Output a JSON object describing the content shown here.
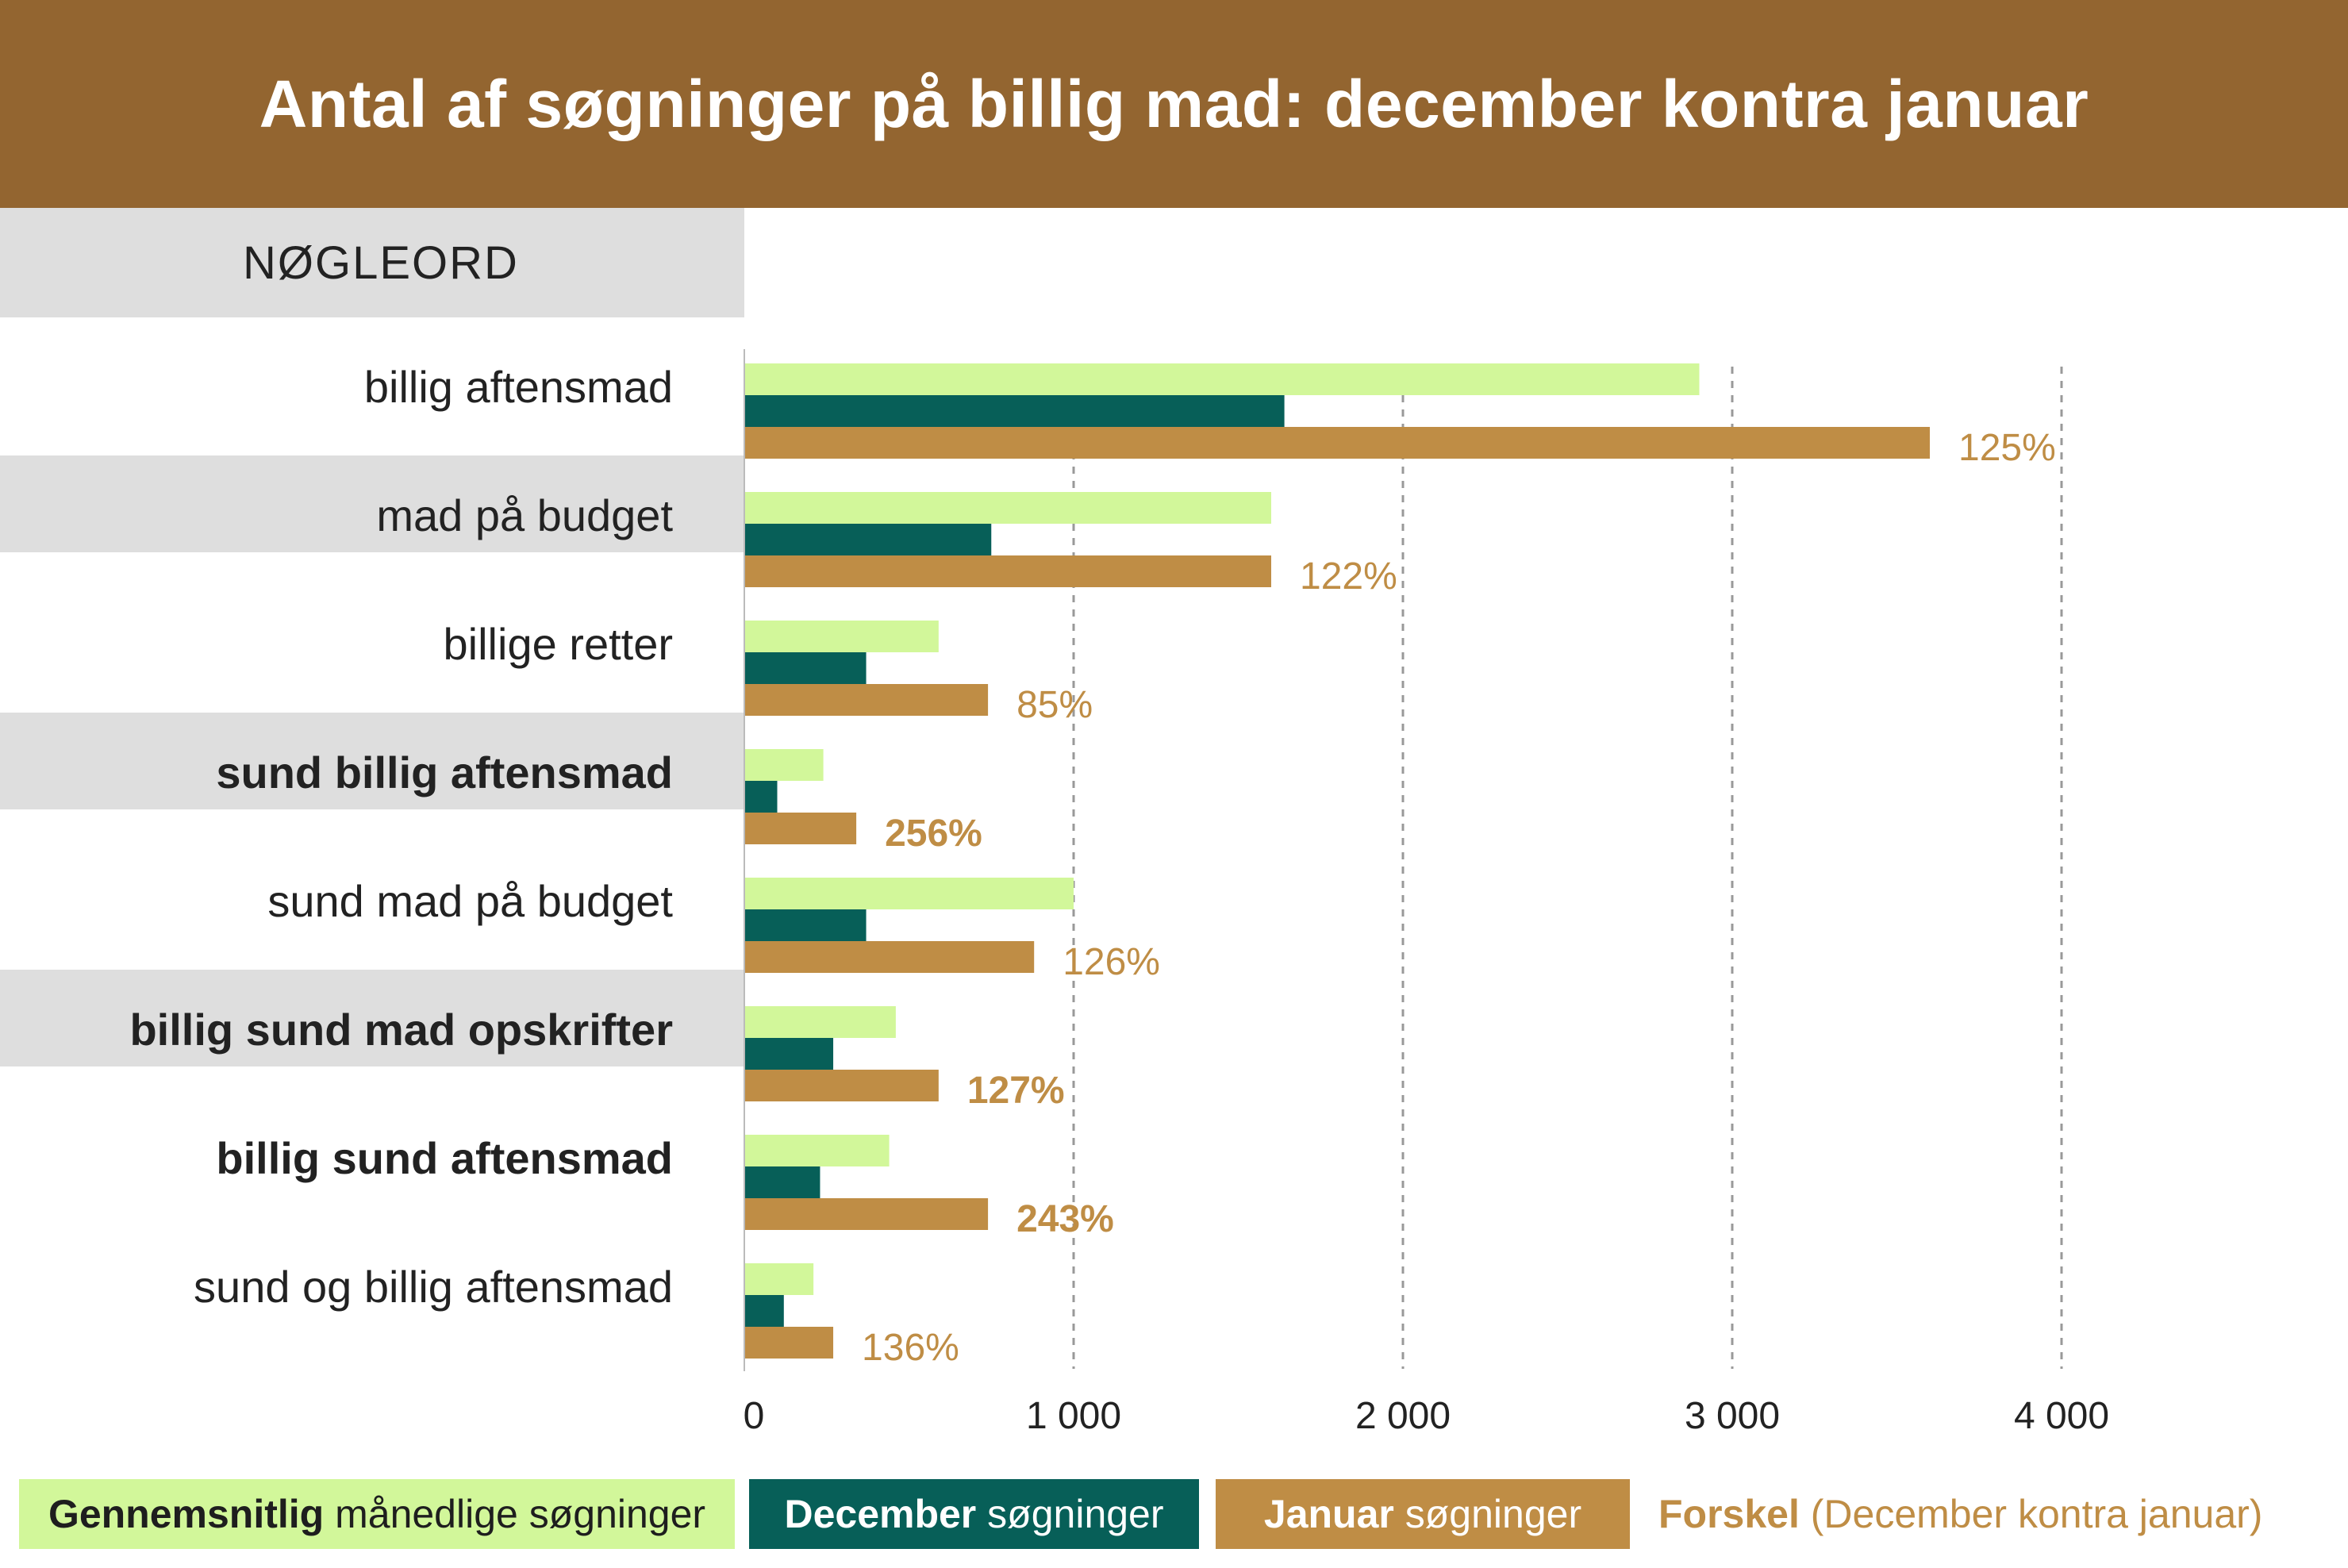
{
  "header": {
    "title": "Antal af søgninger på billig mad: december kontra januar"
  },
  "table": {
    "keyword_heading": "NØGLEORD"
  },
  "colors": {
    "header_bg": "#936530",
    "average": "#d2f79a",
    "december": "#075f58",
    "january": "#bf8d45",
    "row_stripe": "#dedede",
    "gridline": "#999999"
  },
  "legend": {
    "average": {
      "bold": "Gennemsnitlig",
      "rest": "månedlige søgninger"
    },
    "december": {
      "bold": "December",
      "rest": "søgninger"
    },
    "january": {
      "bold": "Januar",
      "rest": "søgninger"
    },
    "difference": {
      "bold": "Forskel",
      "rest": "(December kontra januar)"
    }
  },
  "chart_data": {
    "type": "bar",
    "orientation": "horizontal",
    "title": "Antal af søgninger på billig mad: december kontra januar",
    "categories": [
      "billig aftensmad",
      "mad på budget",
      "billige retter",
      "sund billig aftensmad",
      "sund mad på budget",
      "billig sund mad opskrifter",
      "billig sund aftensmad",
      "sund og billig aftensmad"
    ],
    "bold_categories": [
      false,
      false,
      false,
      true,
      false,
      true,
      true,
      false
    ],
    "striped_rows": [
      false,
      true,
      false,
      true,
      false,
      true,
      false,
      false
    ],
    "series": [
      {
        "name": "Gennemsnitlig månedlige søgninger",
        "values": [
          2900,
          1600,
          590,
          240,
          1000,
          460,
          440,
          210
        ]
      },
      {
        "name": "December søgninger",
        "values": [
          1640,
          750,
          370,
          100,
          370,
          270,
          230,
          120
        ]
      },
      {
        "name": "Januar søgninger",
        "values": [
          3600,
          1600,
          740,
          340,
          880,
          590,
          740,
          270
        ]
      }
    ],
    "difference_labels": [
      "125%",
      "122%",
      "85%",
      "256%",
      "126%",
      "127%",
      "243%",
      "136%"
    ],
    "xlim": [
      0,
      4000
    ],
    "xticks": [
      0,
      1000,
      2000,
      3000,
      4000
    ],
    "xtick_labels": [
      "0",
      "1 000",
      "2 000",
      "3 000",
      "4 000"
    ],
    "grid": "vertical dashed"
  }
}
